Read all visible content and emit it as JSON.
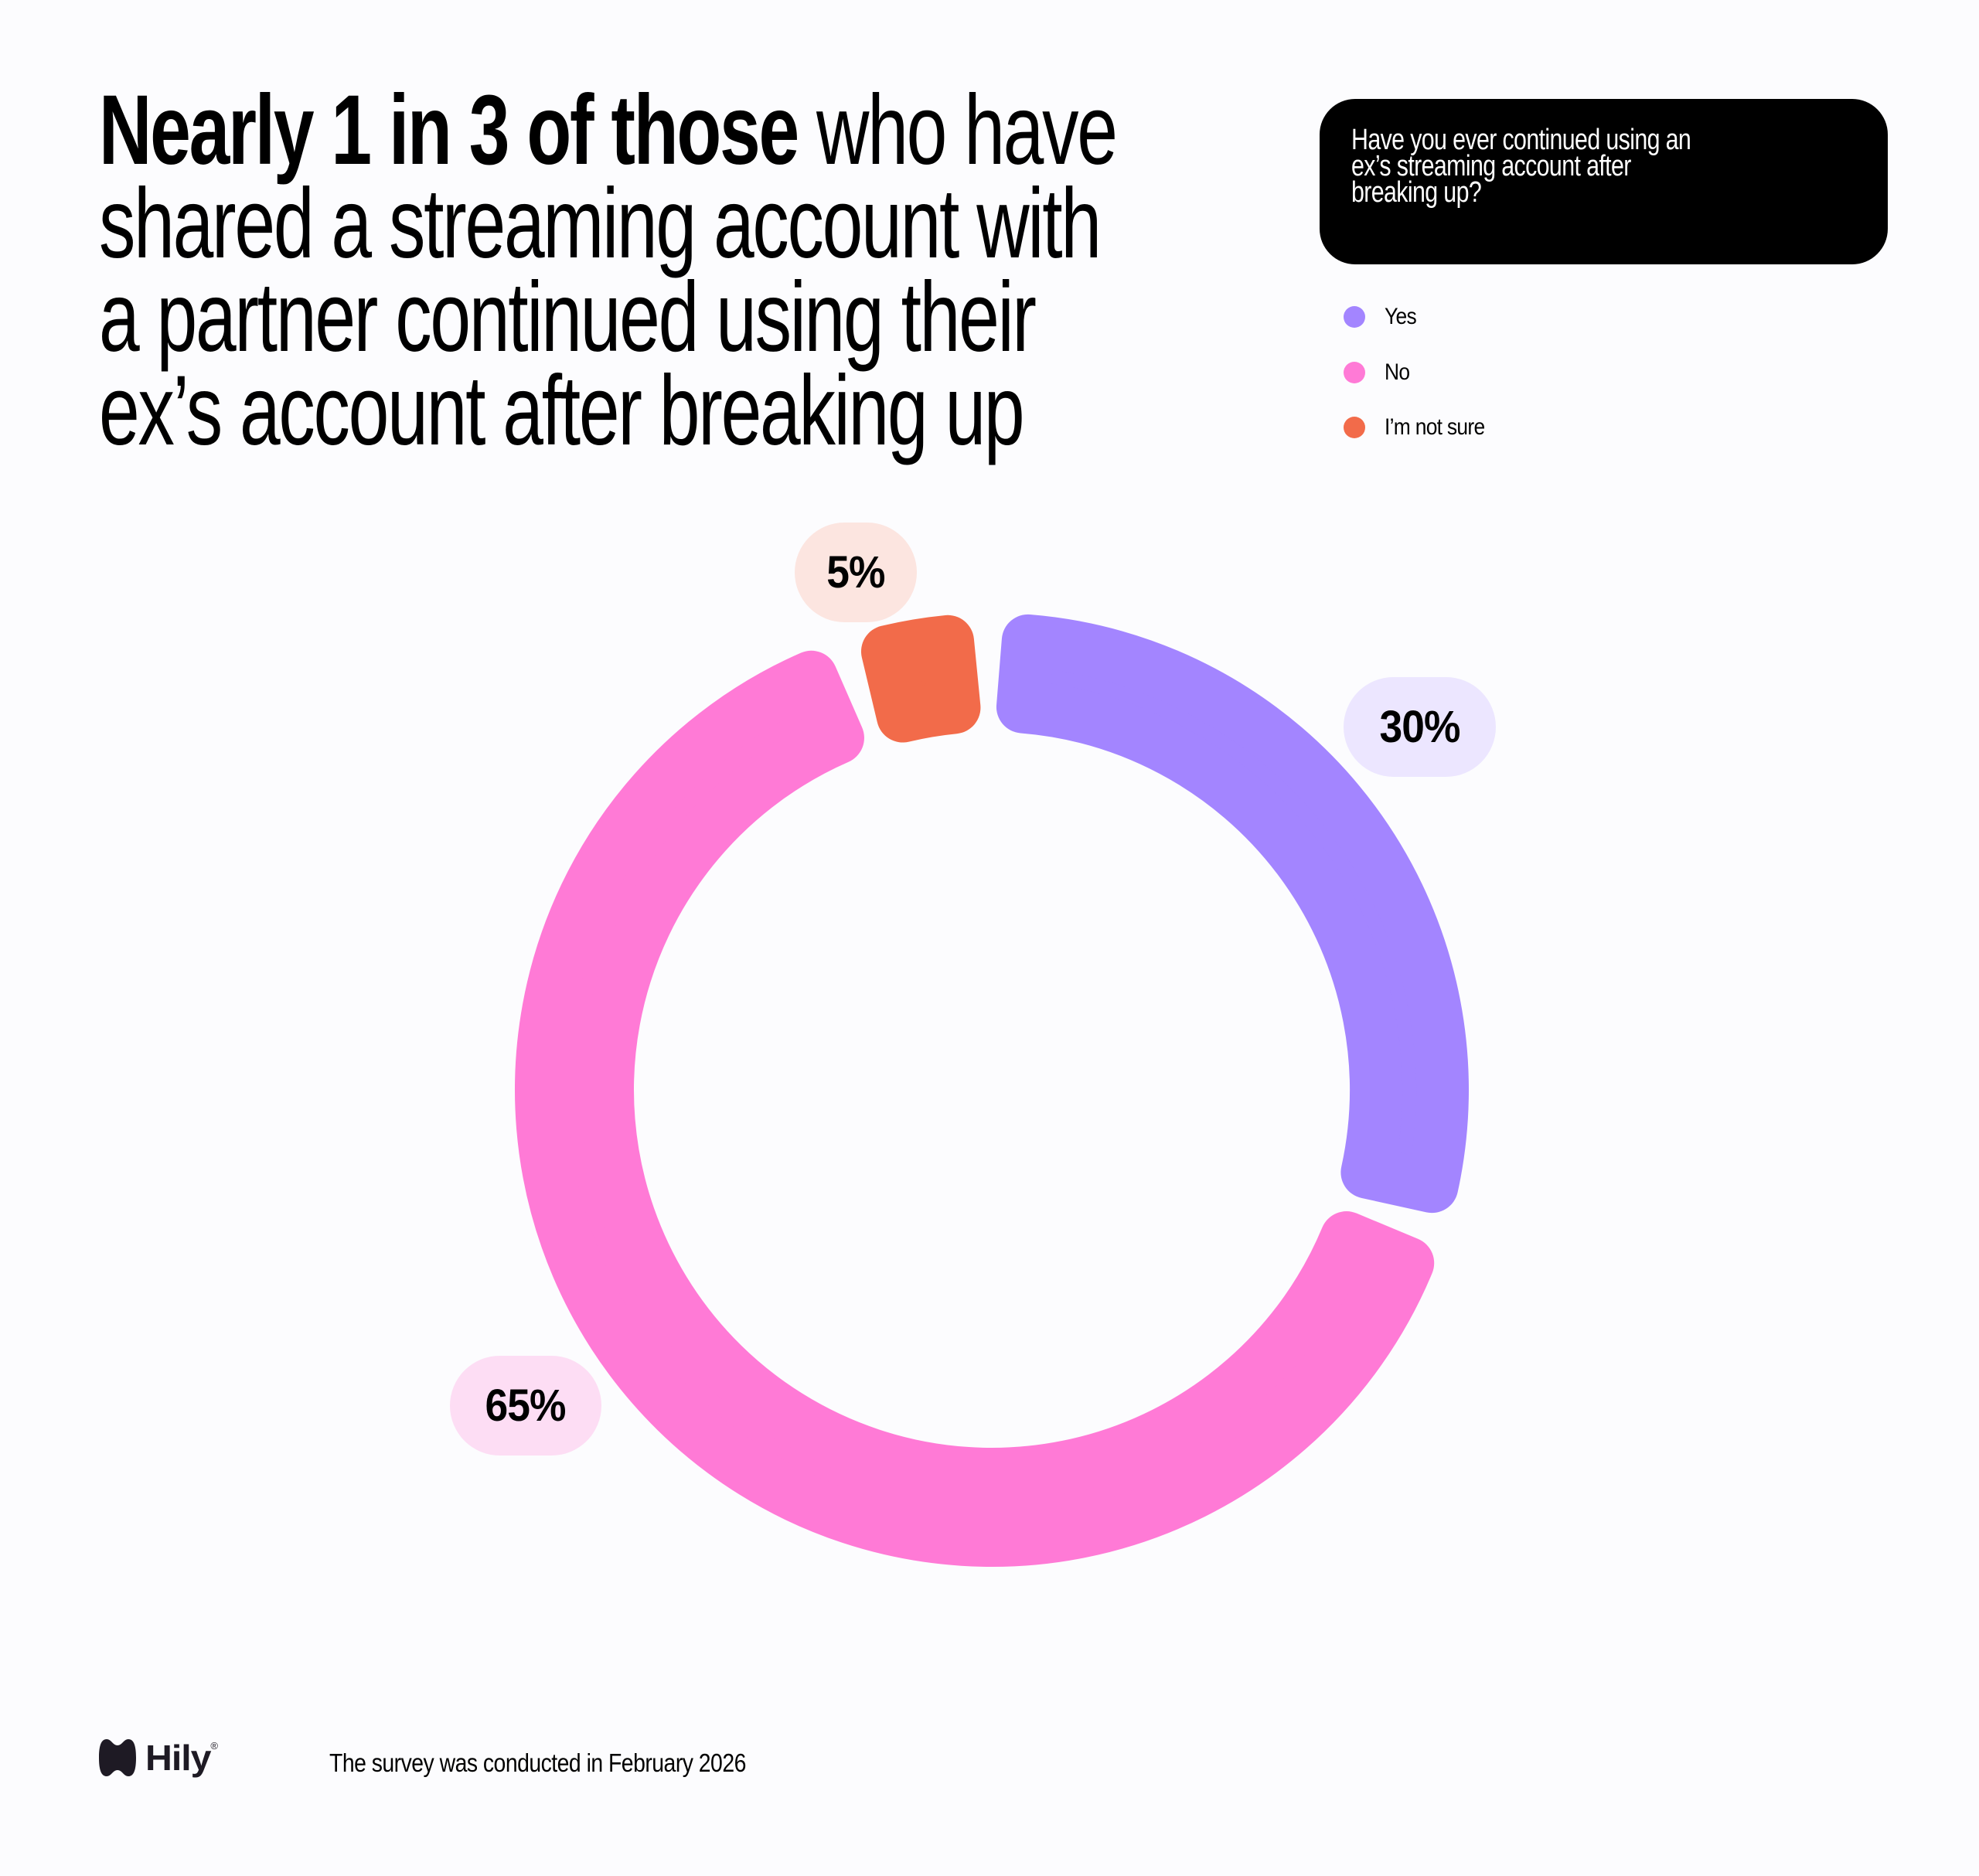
{
  "headline": {
    "bold_part": "Nearly 1 in 3 of those",
    "line1_rest": " who have",
    "line2": "shared a streaming account with",
    "line3": "a partner continued using their",
    "line4": "ex’s account after breaking up"
  },
  "question": {
    "line1": "Have you ever continued using an",
    "line2": "ex’s streaming account after",
    "line3": "breaking up?"
  },
  "legend": [
    {
      "label": "Yes",
      "color": "#A385FF"
    },
    {
      "label": "No",
      "color": "#FF7AD6"
    },
    {
      "label": "I’m not sure",
      "color": "#F26B4A"
    }
  ],
  "labels": {
    "yes": "30%",
    "no": "65%",
    "not_sure": "5%"
  },
  "colors": {
    "yes": "#A385FF",
    "no": "#FF7AD6",
    "not_sure": "#F26B4A",
    "yes_pill": "#ECE6FF",
    "no_pill": "#FDDDF4",
    "not_sure_pill": "#FCE5E0",
    "background": "#FCFCFE"
  },
  "footer": {
    "brand": "Hily",
    "registered": "®",
    "note": "The survey was conducted in February 2026"
  },
  "chart_data": {
    "type": "pie",
    "variant": "donut",
    "title": "Nearly 1 in 3 of those who have shared a streaming account with a partner continued using their ex’s account after breaking up",
    "subtitle": "Have you ever continued using an ex’s streaming account after breaking up?",
    "categories": [
      "Yes",
      "No",
      "I’m not sure"
    ],
    "values": [
      30,
      65,
      5
    ],
    "unit": "%",
    "colors": [
      "#A385FF",
      "#FF7AD6",
      "#F26B4A"
    ],
    "legend_position": "top-right",
    "annotations": [
      "30%",
      "65%",
      "5%"
    ],
    "note": "The survey was conducted in February 2026"
  }
}
